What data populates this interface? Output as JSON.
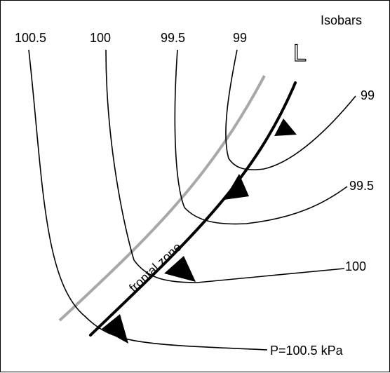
{
  "title": "Isobars",
  "low_symbol": "L",
  "zone_label": "frontal zone",
  "top_labels": [
    "100.5",
    "100",
    "99.5",
    "99"
  ],
  "right_labels": [
    "99",
    "99.5",
    "100",
    "P=100.5 kPa"
  ],
  "colors": {
    "isobar": "#000000",
    "front": "#000000",
    "frontal_zone_boundary": "#a8a8a8",
    "background": "#ffffff"
  }
}
